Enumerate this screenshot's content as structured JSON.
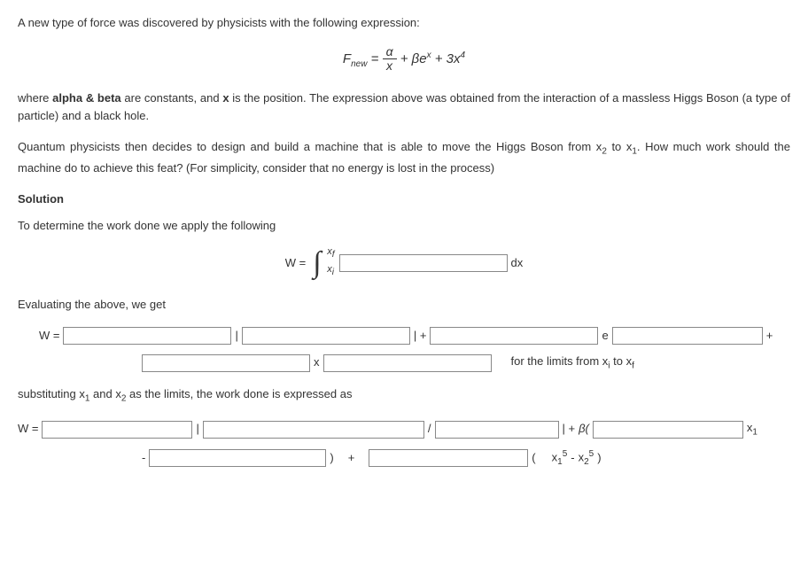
{
  "intro_line": "A new type of force was discovered by physicists with the following expression:",
  "force_eq": {
    "lhs": "F",
    "lhs_sub": "new",
    "frac_num": "α",
    "frac_den": "x",
    "plus1": " + ",
    "beta": "βe",
    "exp_x": "x",
    "plus2": " + 3x",
    "exp4": "4"
  },
  "para2_pre": "where ",
  "para2_bold1": "alpha & beta",
  "para2_mid1": " are constants, and ",
  "para2_bold2": "x",
  "para2_post": " is the position. The expression above was obtained from the interaction of a massless Higgs Boson (a type of particle) and a black hole.",
  "para3_a": "Quantum physicists then decides to design and build a machine that is able to move the Higgs Boson from x",
  "para3_s1": "2",
  "para3_b": " to x",
  "para3_s2": "1",
  "para3_c": ". How much work should the machine do to achieve this feat? (For simplicity, consider that no energy is lost in the process)",
  "solution_heading": "Solution",
  "apply_line": "To determine the work done we apply the following",
  "int_label": "W = ",
  "int_upper": "x",
  "int_upper_sub": "f",
  "int_lower": "x",
  "int_lower_sub": "i",
  "int_dx": "dx",
  "eval_line": "Evaluating the above, we get",
  "row1_W": "W =",
  "row1_bar1": "|",
  "row1_barplus": "| + ",
  "row1_e": "e",
  "row1_plus": " + ",
  "row1_x": "x",
  "row1_limits_a": "for the limits from x",
  "row1_li": "i",
  "row1_to": " to x",
  "row1_lf": "f",
  "subst_a": "substituting x",
  "subst_s1": "1",
  "subst_b": " and x",
  "subst_s2": "2",
  "subst_c": " as the limits, the work done is expressed as",
  "row2_W": "W =",
  "row2_bar1": "|",
  "row2_slash": "/",
  "row2_barplus": "|  +  ",
  "row2_beta": "β(",
  "row2_x1": "x",
  "row2_x1sub": "1",
  "row2_minus": " - ",
  "row2_close": ")",
  "row2_plus": "+",
  "row2_open2": "(",
  "row2_t1a": "x",
  "row2_t1s": "1",
  "row2_t1p": "5",
  "row2_tm": "  -  ",
  "row2_t2a": "x",
  "row2_t2s": "2",
  "row2_t2p": "5",
  "row2_close2": "  )",
  "widths": {
    "int_blank": 190,
    "r1_a": 190,
    "r1_b": 190,
    "r1_c": 190,
    "r1_d": 170,
    "r1_e": 190,
    "r1_f": 190,
    "r2_a": 170,
    "r2_b": 250,
    "r2_c": 140,
    "r2_d": 170,
    "r2_e": 200,
    "r2_f": 180
  }
}
